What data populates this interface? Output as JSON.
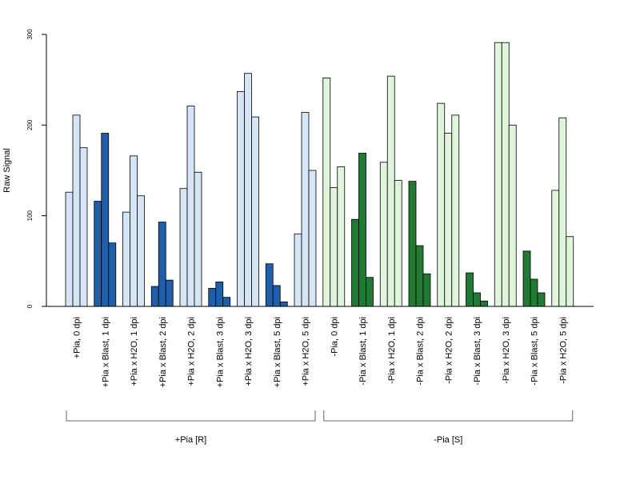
{
  "chart_data": {
    "type": "bar",
    "ylabel": "Raw Signal",
    "xlabel": "",
    "ylim": [
      0,
      300
    ],
    "yticks": [
      0,
      100,
      200,
      300
    ],
    "grid": false,
    "colors": {
      "blue_light": "#d6e5f5",
      "blue_dark": "#1f5ea8",
      "green_light": "#e0f5dc",
      "green_dark": "#217a33",
      "outline": "#000000"
    },
    "groups": [
      {
        "label": "+Pia, 0 dpi",
        "color": "blue_light",
        "values": [
          126,
          211,
          175
        ]
      },
      {
        "label": "+Pia x Blast, 1 dpi",
        "color": "blue_dark",
        "values": [
          116,
          191,
          70
        ]
      },
      {
        "label": "+Pia x H2O, 1 dpi",
        "color": "blue_light",
        "values": [
          104,
          166,
          122
        ]
      },
      {
        "label": "+Pia x Blast, 2 dpi",
        "color": "blue_dark",
        "values": [
          22,
          93,
          29
        ]
      },
      {
        "label": "+Pia x H2O, 2 dpi",
        "color": "blue_light",
        "values": [
          130,
          221,
          148
        ]
      },
      {
        "label": "+Pia x Blast, 3 dpi",
        "color": "blue_dark",
        "values": [
          20,
          27,
          10
        ]
      },
      {
        "label": "+Pia x H2O, 3 dpi",
        "color": "blue_light",
        "values": [
          237,
          257,
          209
        ]
      },
      {
        "label": "+Pia x Blast, 5 dpi",
        "color": "blue_dark",
        "values": [
          47,
          23,
          5
        ]
      },
      {
        "label": "+Pia x H2O, 5 dpi",
        "color": "blue_light",
        "values": [
          80,
          214,
          150
        ]
      },
      {
        "label": "-Pia, 0 dpi",
        "color": "green_light",
        "values": [
          252,
          131,
          154
        ]
      },
      {
        "label": "-Pia x Blast, 1 dpi",
        "color": "green_dark",
        "values": [
          96,
          169,
          32
        ]
      },
      {
        "label": "-Pia x H2O, 1 dpi",
        "color": "green_light",
        "values": [
          159,
          254,
          139
        ]
      },
      {
        "label": "-Pia x Blast, 2 dpi",
        "color": "green_dark",
        "values": [
          138,
          67,
          36
        ]
      },
      {
        "label": "-Pia x H2O, 2 dpi",
        "color": "green_light",
        "values": [
          224,
          191,
          211
        ]
      },
      {
        "label": "-Pia x Blast, 3 dpi",
        "color": "green_dark",
        "values": [
          37,
          15,
          6
        ]
      },
      {
        "label": "-Pia x H2O, 3 dpi",
        "color": "green_light",
        "values": [
          291,
          291,
          200
        ]
      },
      {
        "label": "-Pia x Blast, 5 dpi",
        "color": "green_dark",
        "values": [
          61,
          30,
          15
        ]
      },
      {
        "label": "-Pia x H2O, 5 dpi",
        "color": "green_light",
        "values": [
          128,
          208,
          77
        ]
      }
    ],
    "brackets": [
      {
        "label": "+Pia [R]",
        "from_group": 0,
        "to_group": 8
      },
      {
        "label": "-Pia [S]",
        "from_group": 9,
        "to_group": 17
      }
    ]
  }
}
